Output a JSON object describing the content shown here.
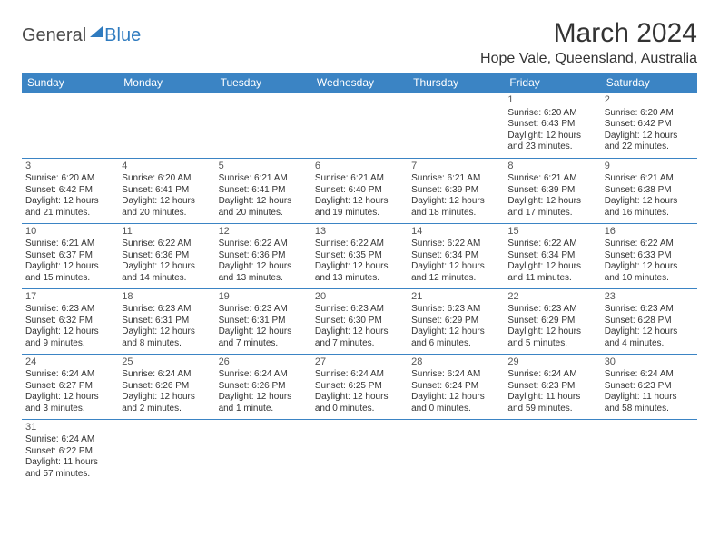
{
  "logo": {
    "text1": "General",
    "text2": "Blue"
  },
  "title": "March 2024",
  "location": "Hope Vale, Queensland, Australia",
  "header_bg": "#3b84c4",
  "header_text": "#ffffff",
  "divider_color": "#3b84c4",
  "weekdays": [
    "Sunday",
    "Monday",
    "Tuesday",
    "Wednesday",
    "Thursday",
    "Friday",
    "Saturday"
  ],
  "weeks": [
    [
      null,
      null,
      null,
      null,
      null,
      {
        "n": "1",
        "sr": "Sunrise: 6:20 AM",
        "ss": "Sunset: 6:43 PM",
        "d1": "Daylight: 12 hours",
        "d2": "and 23 minutes."
      },
      {
        "n": "2",
        "sr": "Sunrise: 6:20 AM",
        "ss": "Sunset: 6:42 PM",
        "d1": "Daylight: 12 hours",
        "d2": "and 22 minutes."
      }
    ],
    [
      {
        "n": "3",
        "sr": "Sunrise: 6:20 AM",
        "ss": "Sunset: 6:42 PM",
        "d1": "Daylight: 12 hours",
        "d2": "and 21 minutes."
      },
      {
        "n": "4",
        "sr": "Sunrise: 6:20 AM",
        "ss": "Sunset: 6:41 PM",
        "d1": "Daylight: 12 hours",
        "d2": "and 20 minutes."
      },
      {
        "n": "5",
        "sr": "Sunrise: 6:21 AM",
        "ss": "Sunset: 6:41 PM",
        "d1": "Daylight: 12 hours",
        "d2": "and 20 minutes."
      },
      {
        "n": "6",
        "sr": "Sunrise: 6:21 AM",
        "ss": "Sunset: 6:40 PM",
        "d1": "Daylight: 12 hours",
        "d2": "and 19 minutes."
      },
      {
        "n": "7",
        "sr": "Sunrise: 6:21 AM",
        "ss": "Sunset: 6:39 PM",
        "d1": "Daylight: 12 hours",
        "d2": "and 18 minutes."
      },
      {
        "n": "8",
        "sr": "Sunrise: 6:21 AM",
        "ss": "Sunset: 6:39 PM",
        "d1": "Daylight: 12 hours",
        "d2": "and 17 minutes."
      },
      {
        "n": "9",
        "sr": "Sunrise: 6:21 AM",
        "ss": "Sunset: 6:38 PM",
        "d1": "Daylight: 12 hours",
        "d2": "and 16 minutes."
      }
    ],
    [
      {
        "n": "10",
        "sr": "Sunrise: 6:21 AM",
        "ss": "Sunset: 6:37 PM",
        "d1": "Daylight: 12 hours",
        "d2": "and 15 minutes."
      },
      {
        "n": "11",
        "sr": "Sunrise: 6:22 AM",
        "ss": "Sunset: 6:36 PM",
        "d1": "Daylight: 12 hours",
        "d2": "and 14 minutes."
      },
      {
        "n": "12",
        "sr": "Sunrise: 6:22 AM",
        "ss": "Sunset: 6:36 PM",
        "d1": "Daylight: 12 hours",
        "d2": "and 13 minutes."
      },
      {
        "n": "13",
        "sr": "Sunrise: 6:22 AM",
        "ss": "Sunset: 6:35 PM",
        "d1": "Daylight: 12 hours",
        "d2": "and 13 minutes."
      },
      {
        "n": "14",
        "sr": "Sunrise: 6:22 AM",
        "ss": "Sunset: 6:34 PM",
        "d1": "Daylight: 12 hours",
        "d2": "and 12 minutes."
      },
      {
        "n": "15",
        "sr": "Sunrise: 6:22 AM",
        "ss": "Sunset: 6:34 PM",
        "d1": "Daylight: 12 hours",
        "d2": "and 11 minutes."
      },
      {
        "n": "16",
        "sr": "Sunrise: 6:22 AM",
        "ss": "Sunset: 6:33 PM",
        "d1": "Daylight: 12 hours",
        "d2": "and 10 minutes."
      }
    ],
    [
      {
        "n": "17",
        "sr": "Sunrise: 6:23 AM",
        "ss": "Sunset: 6:32 PM",
        "d1": "Daylight: 12 hours",
        "d2": "and 9 minutes."
      },
      {
        "n": "18",
        "sr": "Sunrise: 6:23 AM",
        "ss": "Sunset: 6:31 PM",
        "d1": "Daylight: 12 hours",
        "d2": "and 8 minutes."
      },
      {
        "n": "19",
        "sr": "Sunrise: 6:23 AM",
        "ss": "Sunset: 6:31 PM",
        "d1": "Daylight: 12 hours",
        "d2": "and 7 minutes."
      },
      {
        "n": "20",
        "sr": "Sunrise: 6:23 AM",
        "ss": "Sunset: 6:30 PM",
        "d1": "Daylight: 12 hours",
        "d2": "and 7 minutes."
      },
      {
        "n": "21",
        "sr": "Sunrise: 6:23 AM",
        "ss": "Sunset: 6:29 PM",
        "d1": "Daylight: 12 hours",
        "d2": "and 6 minutes."
      },
      {
        "n": "22",
        "sr": "Sunrise: 6:23 AM",
        "ss": "Sunset: 6:29 PM",
        "d1": "Daylight: 12 hours",
        "d2": "and 5 minutes."
      },
      {
        "n": "23",
        "sr": "Sunrise: 6:23 AM",
        "ss": "Sunset: 6:28 PM",
        "d1": "Daylight: 12 hours",
        "d2": "and 4 minutes."
      }
    ],
    [
      {
        "n": "24",
        "sr": "Sunrise: 6:24 AM",
        "ss": "Sunset: 6:27 PM",
        "d1": "Daylight: 12 hours",
        "d2": "and 3 minutes."
      },
      {
        "n": "25",
        "sr": "Sunrise: 6:24 AM",
        "ss": "Sunset: 6:26 PM",
        "d1": "Daylight: 12 hours",
        "d2": "and 2 minutes."
      },
      {
        "n": "26",
        "sr": "Sunrise: 6:24 AM",
        "ss": "Sunset: 6:26 PM",
        "d1": "Daylight: 12 hours",
        "d2": "and 1 minute."
      },
      {
        "n": "27",
        "sr": "Sunrise: 6:24 AM",
        "ss": "Sunset: 6:25 PM",
        "d1": "Daylight: 12 hours",
        "d2": "and 0 minutes."
      },
      {
        "n": "28",
        "sr": "Sunrise: 6:24 AM",
        "ss": "Sunset: 6:24 PM",
        "d1": "Daylight: 12 hours",
        "d2": "and 0 minutes."
      },
      {
        "n": "29",
        "sr": "Sunrise: 6:24 AM",
        "ss": "Sunset: 6:23 PM",
        "d1": "Daylight: 11 hours",
        "d2": "and 59 minutes."
      },
      {
        "n": "30",
        "sr": "Sunrise: 6:24 AM",
        "ss": "Sunset: 6:23 PM",
        "d1": "Daylight: 11 hours",
        "d2": "and 58 minutes."
      }
    ],
    [
      {
        "n": "31",
        "sr": "Sunrise: 6:24 AM",
        "ss": "Sunset: 6:22 PM",
        "d1": "Daylight: 11 hours",
        "d2": "and 57 minutes."
      },
      null,
      null,
      null,
      null,
      null,
      null
    ]
  ]
}
